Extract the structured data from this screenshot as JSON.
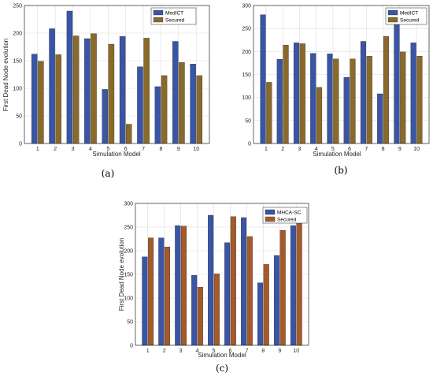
{
  "chart_data": [
    {
      "type": "bar",
      "panel_label": "(a)",
      "categories": [
        "1",
        "2",
        "3",
        "4",
        "5",
        "6",
        "7",
        "8",
        "9",
        "10"
      ],
      "series": [
        {
          "name": "MedICT",
          "values": [
            162,
            208,
            240,
            190,
            98,
            194,
            139,
            103,
            185,
            144
          ],
          "color": "#3a55a5"
        },
        {
          "name": "Secured",
          "values": [
            149,
            161,
            195,
            199,
            180,
            35,
            191,
            123,
            147,
            123
          ],
          "color": "#8a6a2a"
        }
      ],
      "xlabel": "Simulation Model",
      "ylabel": "First Dead Node evolution",
      "ylim": [
        0,
        250
      ],
      "yticks": [
        0,
        50,
        100,
        150,
        200,
        250
      ],
      "grid": true,
      "legend": "top-right"
    },
    {
      "type": "bar",
      "panel_label": "(b)",
      "categories": [
        "1",
        "2",
        "3",
        "4",
        "5",
        "6",
        "7",
        "8",
        "9",
        "10"
      ],
      "series": [
        {
          "name": "MedICT",
          "values": [
            280,
            183,
            219,
            196,
            195,
            144,
            222,
            108,
            262,
            219
          ],
          "color": "#3a55a5"
        },
        {
          "name": "Secured",
          "values": [
            133,
            214,
            217,
            122,
            184,
            184,
            190,
            233,
            199,
            190
          ],
          "color": "#8a6a2a"
        }
      ],
      "xlabel": "Simulation Model",
      "ylabel": "",
      "ylim": [
        0,
        300
      ],
      "yticks": [
        0,
        50,
        100,
        150,
        200,
        250,
        300
      ],
      "grid": true,
      "legend": "top-right"
    },
    {
      "type": "bar",
      "panel_label": "(c)",
      "categories": [
        "1",
        "2",
        "3",
        "4",
        "5",
        "6",
        "7",
        "8",
        "9",
        "10"
      ],
      "series": [
        {
          "name": "MHCA-SC",
          "values": [
            187,
            227,
            253,
            148,
            275,
            217,
            270,
            132,
            190,
            253
          ],
          "color": "#3a55a5"
        },
        {
          "name": "Secured",
          "values": [
            227,
            208,
            252,
            123,
            151,
            272,
            230,
            171,
            243,
            259
          ],
          "color": "#a55a2a"
        }
      ],
      "xlabel": "Simulation Model",
      "ylabel": "First Dead Node evolution",
      "ylim": [
        0,
        300
      ],
      "yticks": [
        0,
        50,
        100,
        150,
        200,
        250,
        300
      ],
      "grid": true,
      "legend": "top-right"
    }
  ]
}
